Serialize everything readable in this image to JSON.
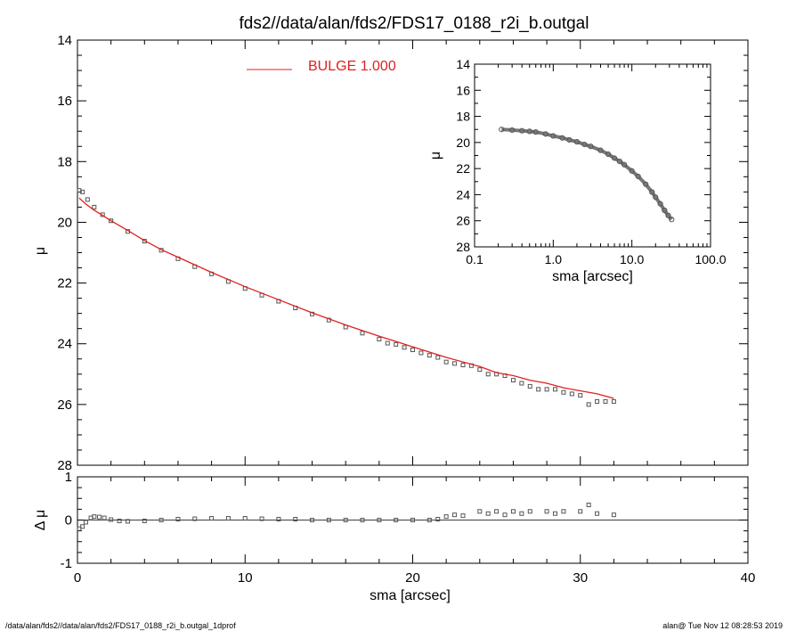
{
  "window": {
    "title": "fds2//data/alan/fds2/FDS17_0188_r2i_b.outgal",
    "footer_left": "/data/alan/fds2//data/alan/fds2/FDS17_0188_r2i_b.outgal_1dprof",
    "footer_right": "alan@  Tue Nov 12 08:28:53 2019"
  },
  "legend": {
    "label": "BULGE  1.000",
    "color": "#e0201e"
  },
  "colors": {
    "model": "#e0201e",
    "points": "#555555",
    "axes": "#000000"
  },
  "chart_data": [
    {
      "type": "scatter",
      "panel": "main",
      "title": "fds2//data/alan/fds2/FDS17_0188_r2i_b.outgal",
      "xlabel": "",
      "ylabel": "μ",
      "xlim": [
        0,
        40
      ],
      "ylim": [
        28,
        14
      ],
      "y_inverted": true,
      "xticks": [
        "0",
        "10",
        "20",
        "30",
        "40"
      ],
      "yticks": [
        "14",
        "16",
        "18",
        "20",
        "22",
        "24",
        "26",
        "28"
      ],
      "series": [
        {
          "name": "",
          "kind": "points",
          "x": [
            0.1,
            0.3,
            0.6,
            1.0,
            1.5,
            2.0,
            3.0,
            4.0,
            5.0,
            6.0,
            7.0,
            8.0,
            9.0,
            10.0,
            11.0,
            12.0,
            13.0,
            14.0,
            15.0,
            16.0,
            17.0,
            18.0,
            18.5,
            19.0,
            19.5,
            20.0,
            20.5,
            21.0,
            21.5,
            22.0,
            22.5,
            23.0,
            23.5,
            24.0,
            24.5,
            25.0,
            25.5,
            26.0,
            26.5,
            27.0,
            27.5,
            28.0,
            28.5,
            29.0,
            29.5,
            30.0,
            30.5,
            31.0,
            31.5,
            32.0
          ],
          "y": [
            18.95,
            19.0,
            19.25,
            19.5,
            19.75,
            19.95,
            20.3,
            20.62,
            20.92,
            21.2,
            21.46,
            21.7,
            21.95,
            22.18,
            22.4,
            22.6,
            22.82,
            23.02,
            23.22,
            23.45,
            23.65,
            23.85,
            23.98,
            24.02,
            24.12,
            24.2,
            24.3,
            24.38,
            24.45,
            24.6,
            24.65,
            24.7,
            24.72,
            24.85,
            25.0,
            25.0,
            25.05,
            25.2,
            25.3,
            25.4,
            25.5,
            25.5,
            25.5,
            25.6,
            25.65,
            25.7,
            26.0,
            25.9,
            25.9,
            25.9
          ]
        },
        {
          "name": "BULGE  1.000",
          "kind": "line",
          "x": [
            0.1,
            0.5,
            1.0,
            2.0,
            3.0,
            4.0,
            5.0,
            6.0,
            8.0,
            10.0,
            12.0,
            14.0,
            16.0,
            18.0,
            20.0,
            22.0,
            24.0,
            25.0,
            26.0,
            27.0,
            28.0,
            29.0,
            30.0,
            31.0,
            32.0
          ],
          "y": [
            19.2,
            19.4,
            19.6,
            19.95,
            20.27,
            20.6,
            20.9,
            21.15,
            21.65,
            22.12,
            22.55,
            22.98,
            23.38,
            23.75,
            24.1,
            24.45,
            24.75,
            24.95,
            25.05,
            25.2,
            25.3,
            25.45,
            25.55,
            25.65,
            25.8
          ]
        }
      ]
    },
    {
      "type": "scatter",
      "panel": "residual",
      "xlabel": "sma [arcsec]",
      "ylabel": "Δ μ",
      "xlim": [
        0,
        40
      ],
      "ylim": [
        -1,
        1
      ],
      "xticks": [
        "0",
        "10",
        "20",
        "30",
        "40"
      ],
      "yticks": [
        "1",
        "0",
        "-1"
      ],
      "zero_line": true,
      "series": [
        {
          "name": "",
          "kind": "points",
          "x": [
            0.1,
            0.3,
            0.5,
            0.8,
            1.0,
            1.3,
            1.6,
            2.0,
            2.5,
            3.0,
            4.0,
            5.0,
            6.0,
            7.0,
            8.0,
            9.0,
            10.0,
            11.0,
            12.0,
            13.0,
            14.0,
            15.0,
            16.0,
            17.0,
            18.0,
            19.0,
            20.0,
            21.0,
            21.5,
            22.0,
            22.5,
            23.0,
            24.0,
            24.5,
            25.0,
            25.5,
            26.0,
            26.5,
            27.0,
            28.0,
            28.5,
            29.0,
            30.0,
            30.5,
            31.0,
            32.0
          ],
          "y": [
            -0.2,
            -0.15,
            -0.05,
            0.05,
            0.08,
            0.07,
            0.05,
            0.01,
            -0.02,
            -0.03,
            -0.02,
            0.0,
            0.02,
            0.03,
            0.04,
            0.04,
            0.04,
            0.03,
            0.02,
            0.02,
            0.0,
            0.0,
            0.0,
            0.0,
            0.0,
            0.0,
            0.0,
            0.0,
            0.02,
            0.08,
            0.12,
            0.1,
            0.2,
            0.15,
            0.2,
            0.12,
            0.2,
            0.15,
            0.2,
            0.2,
            0.15,
            0.2,
            0.2,
            0.35,
            0.15,
            0.12
          ]
        }
      ]
    },
    {
      "type": "scatter",
      "panel": "inset",
      "xlabel": "sma [arcsec]",
      "ylabel": "μ",
      "xscale": "log",
      "xlim": [
        0.1,
        100.0
      ],
      "ylim": [
        28,
        14
      ],
      "y_inverted": true,
      "xticks": [
        "0.1",
        "1.0",
        "10.0",
        "100.0"
      ],
      "yticks": [
        "14",
        "16",
        "18",
        "20",
        "22",
        "24",
        "26",
        "28"
      ],
      "series": [
        {
          "name": "",
          "kind": "points",
          "x": [
            0.22,
            0.3,
            0.4,
            0.5,
            0.6,
            0.8,
            1.0,
            1.3,
            1.6,
            2.0,
            2.5,
            3.0,
            4.0,
            5.0,
            6.0,
            7.0,
            8.0,
            10.0,
            12.0,
            15.0,
            18.0,
            20.0,
            23.0,
            26.0,
            29.0,
            32.0
          ],
          "y": [
            19.0,
            19.05,
            19.1,
            19.15,
            19.2,
            19.35,
            19.5,
            19.65,
            19.8,
            19.95,
            20.15,
            20.3,
            20.6,
            20.9,
            21.2,
            21.45,
            21.7,
            22.18,
            22.6,
            23.2,
            23.8,
            24.2,
            24.7,
            25.2,
            25.6,
            25.9
          ]
        }
      ]
    }
  ]
}
